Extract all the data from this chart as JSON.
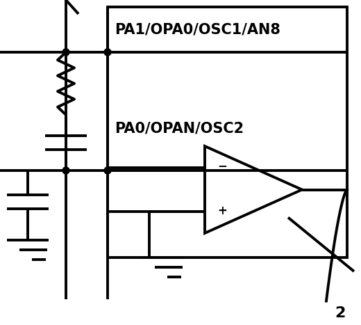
{
  "bg_color": "#ffffff",
  "line_color": "#000000",
  "lw": 2.8,
  "text_label1": "PA1/OPA0/OSC1/AN8",
  "text_label2": "PA0/OPAN/OSC2",
  "page_number": "2",
  "fig_width": 5.2,
  "fig_height": 4.67,
  "dpi": 100
}
